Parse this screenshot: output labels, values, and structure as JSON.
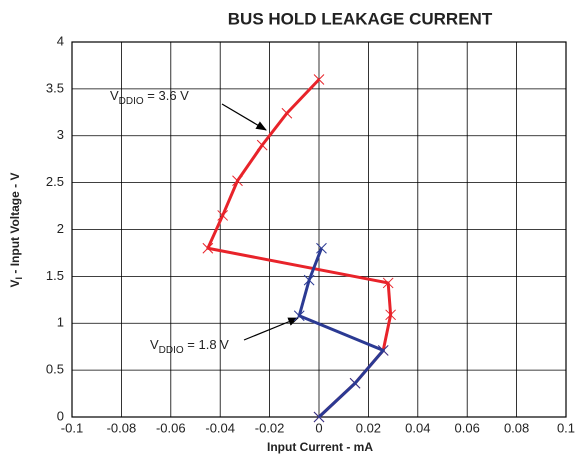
{
  "chart_data": {
    "type": "line",
    "title": "BUS HOLD LEAKAGE CURRENT",
    "x_label": "Input Current - mA",
    "y_label": [
      "V",
      "I",
      " - Input Voltage - V"
    ],
    "xlim": [
      -0.1,
      0.1
    ],
    "xticks": [
      -0.1,
      -0.08,
      -0.06,
      -0.04,
      -0.02,
      0,
      0.02,
      0.04,
      0.06,
      0.08,
      0.1
    ],
    "ylim": [
      0,
      4
    ],
    "yticks": [
      0,
      0.5,
      1,
      1.5,
      2,
      2.5,
      3,
      3.5,
      4
    ],
    "grid": true,
    "series": [
      {
        "name": [
          "V",
          "DDIO",
          " = 3.6 V"
        ],
        "color": "#e8232a",
        "x": [
          0,
          0.0146,
          0.026,
          0.029,
          0.028,
          -0.045,
          -0.039,
          -0.033,
          -0.023,
          -0.013,
          0
        ],
        "values": [
          0,
          0.36,
          0.71,
          1.09,
          1.43,
          1.8,
          2.15,
          2.52,
          2.9,
          3.24,
          3.6
        ]
      },
      {
        "name": [
          "V",
          "DDIO",
          " = 1.8 V"
        ],
        "color": "#2b3a93",
        "x": [
          0,
          0.0146,
          0.026,
          -0.008,
          -0.004,
          0.001
        ],
        "values": [
          0,
          0.36,
          0.71,
          1.08,
          1.46,
          1.8
        ]
      }
    ]
  }
}
